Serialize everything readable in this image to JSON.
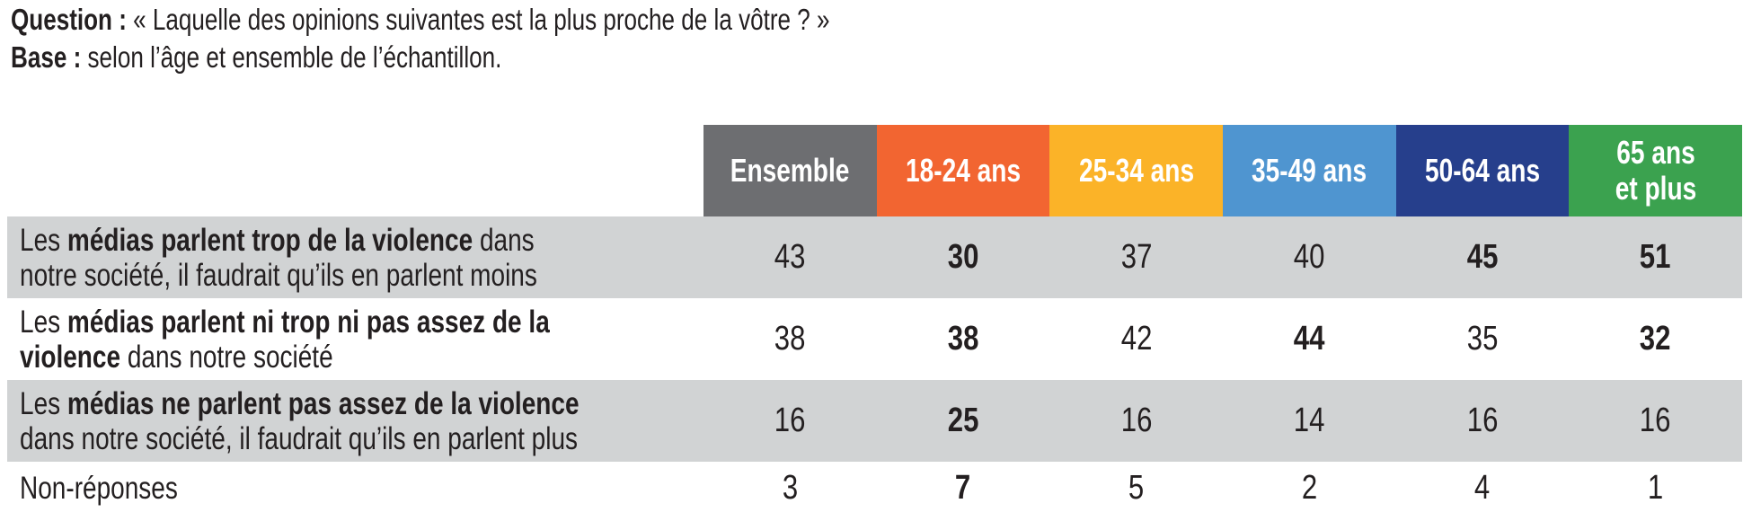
{
  "intro": {
    "question_label": "Question :",
    "question_text": " « Laquelle des opinions suivantes est la plus proche de la vôtre ? »",
    "base_label": "Base :",
    "base_text": " selon l’âge et ensemble de l’échantillon."
  },
  "columns": [
    {
      "label": "Ensemble",
      "color": "#6d6e71"
    },
    {
      "label": "18-24 ans",
      "color": "#f26531"
    },
    {
      "label": "25-34 ans",
      "color": "#fbb328"
    },
    {
      "label": "35-49 ans",
      "color": "#4f95d0"
    },
    {
      "label": "50-64 ans",
      "color": "#263f8c"
    },
    {
      "label_line1": "65 ans",
      "label_line2": "et plus",
      "color": "#3ba24f"
    }
  ],
  "rows": [
    {
      "label": {
        "pre": "Les ",
        "bold": "médias parlent trop de la violence",
        "post_line1": " dans",
        "line2": "notre société, il faudrait qu’ils en parlent moins"
      },
      "values": [
        "43",
        "30",
        "37",
        "40",
        "45",
        "51"
      ],
      "bold": [
        false,
        true,
        false,
        false,
        true,
        true
      ]
    },
    {
      "label": {
        "pre": "Les ",
        "bold": "médias parlent ni trop ni pas assez de la",
        "line2_bold": "violence",
        "line2_post": " dans notre société"
      },
      "values": [
        "38",
        "38",
        "42",
        "44",
        "35",
        "32"
      ],
      "bold": [
        false,
        true,
        false,
        true,
        false,
        true
      ]
    },
    {
      "label": {
        "pre": "Les ",
        "bold": "médias ne parlent pas assez de la violence",
        "line2": "dans notre société, il faudrait qu’ils en parlent plus"
      },
      "values": [
        "16",
        "25",
        "16",
        "14",
        "16",
        "16"
      ],
      "bold": [
        false,
        true,
        false,
        false,
        false,
        false
      ]
    },
    {
      "label": {
        "text": "Non-réponses"
      },
      "values": [
        "3",
        "7",
        "5",
        "2",
        "4",
        "1"
      ],
      "bold": [
        false,
        true,
        false,
        false,
        false,
        false
      ]
    }
  ],
  "colors": {
    "row_gray": "#d1d3d4",
    "text": "#231f20"
  }
}
